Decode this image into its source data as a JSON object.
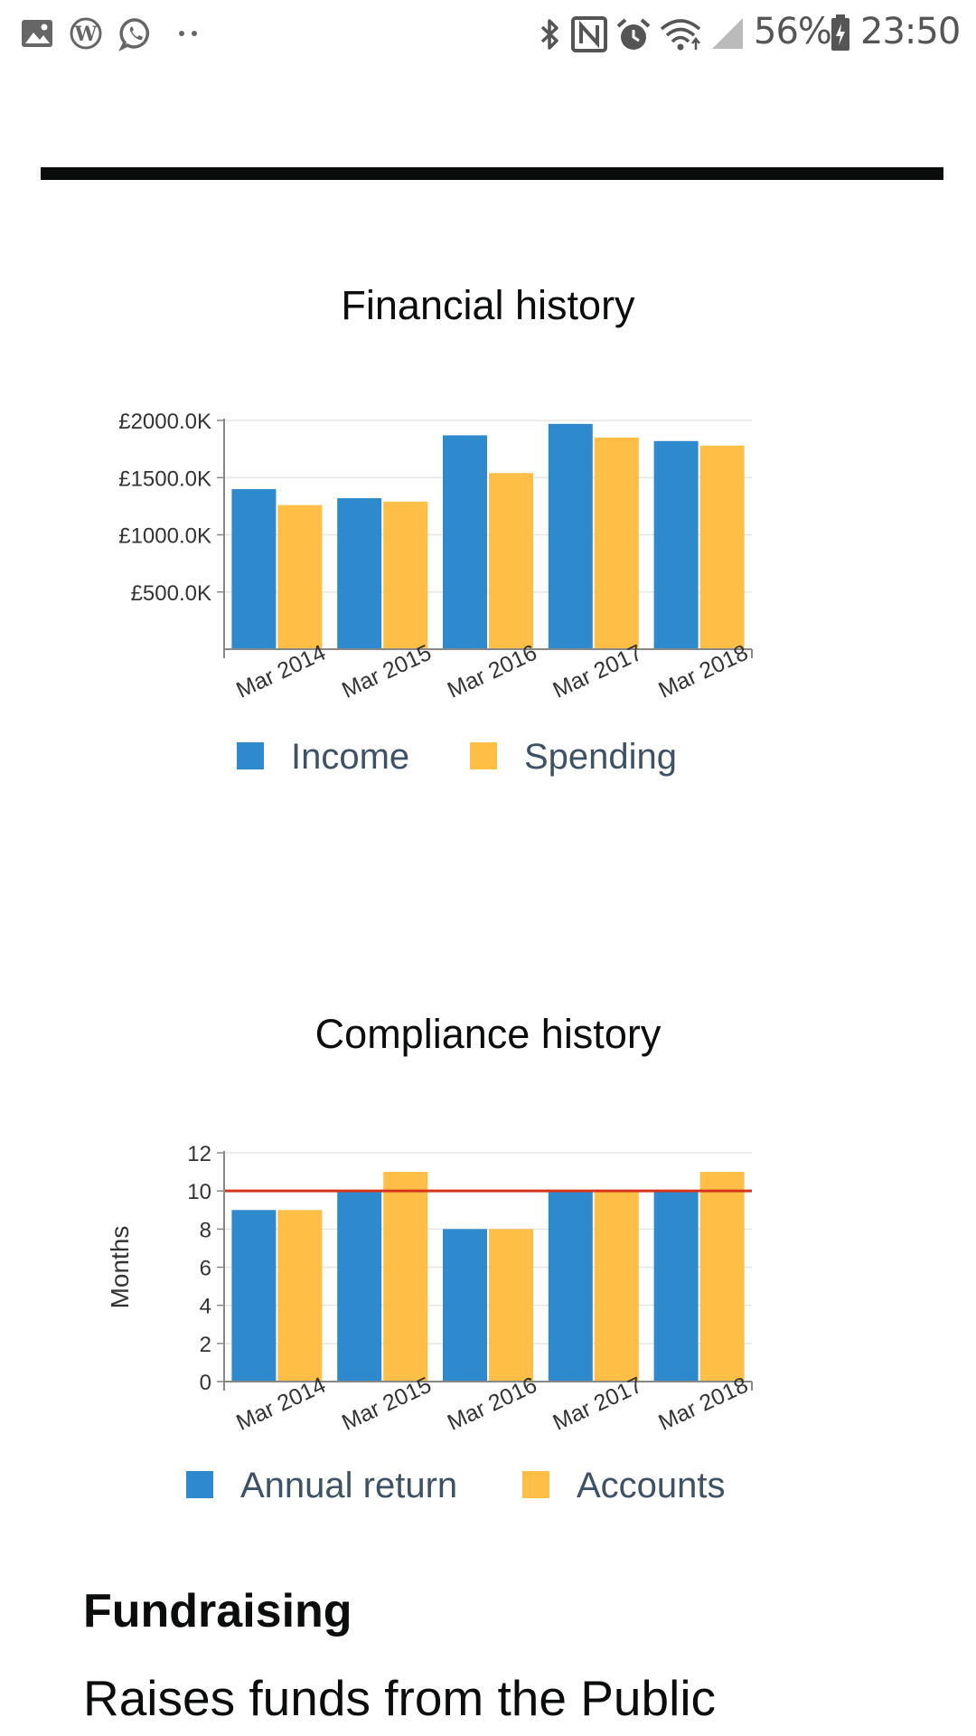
{
  "status_bar": {
    "icons_left": [
      "image-icon",
      "wordpress-icon",
      "whatsapp-icon",
      "more-dots-icon"
    ],
    "icons_right": [
      "bluetooth-icon",
      "nfc-icon",
      "alarm-icon",
      "wifi-icon",
      "signal-icon"
    ],
    "battery": "56%",
    "time": "23:50"
  },
  "financial": {
    "title": "Financial history"
  },
  "compliance": {
    "title": "Compliance history"
  },
  "fundraising": {
    "heading": "Fundraising",
    "text": "Raises funds from the Public"
  },
  "colors": {
    "series_a": "#2e8acc",
    "series_b": "#ffbf47",
    "threshold": "#d4351c",
    "legend_text": "#3d5266",
    "axis": "#888888",
    "grid": "#e6e6e6"
  },
  "chart_data": [
    {
      "type": "bar",
      "title": "Financial history",
      "categories": [
        "Mar 2014",
        "Mar 2015",
        "Mar 2016",
        "Mar 2017",
        "Mar 2018"
      ],
      "series": [
        {
          "name": "Income",
          "values": [
            1400,
            1320,
            1870,
            1970,
            1820
          ]
        },
        {
          "name": "Spending",
          "values": [
            1260,
            1290,
            1540,
            1850,
            1780
          ]
        }
      ],
      "yticks": [
        500,
        1000,
        1500,
        2000
      ],
      "ytick_labels": [
        "£500.0K",
        "£1000.0K",
        "£1500.0K",
        "£2000.0K"
      ],
      "ylim": [
        0,
        2000
      ],
      "xlabel": "",
      "ylabel": "",
      "grid": true,
      "legend": "bottom"
    },
    {
      "type": "bar",
      "title": "Compliance history",
      "categories": [
        "Mar 2014",
        "Mar 2015",
        "Mar 2016",
        "Mar 2017",
        "Mar 2018"
      ],
      "series": [
        {
          "name": "Annual return",
          "values": [
            9,
            10,
            8,
            10,
            10
          ]
        },
        {
          "name": "Accounts",
          "values": [
            9,
            11,
            8,
            10,
            11
          ]
        }
      ],
      "yticks": [
        0,
        2,
        4,
        6,
        8,
        10,
        12
      ],
      "ytick_labels": [
        "0",
        "2",
        "4",
        "6",
        "8",
        "10",
        "12"
      ],
      "ylim": [
        0,
        12
      ],
      "threshold": 10,
      "xlabel": "",
      "ylabel": "Months",
      "grid": true,
      "legend": "bottom"
    }
  ]
}
